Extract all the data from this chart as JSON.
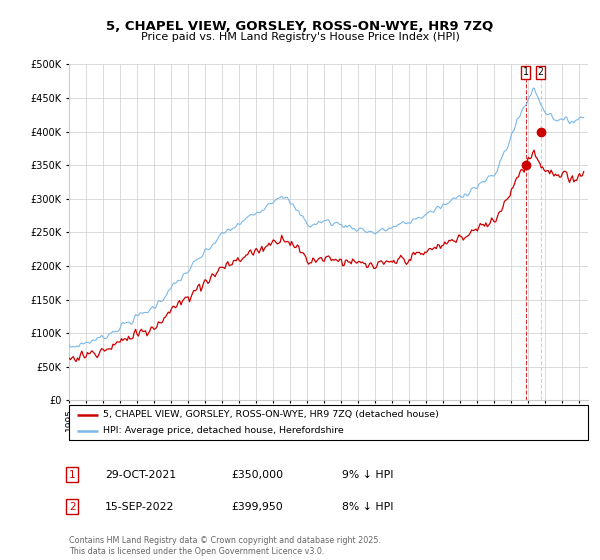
{
  "title": "5, CHAPEL VIEW, GORSLEY, ROSS-ON-WYE, HR9 7ZQ",
  "subtitle": "Price paid vs. HM Land Registry's House Price Index (HPI)",
  "legend1": "5, CHAPEL VIEW, GORSLEY, ROSS-ON-WYE, HR9 7ZQ (detached house)",
  "legend2": "HPI: Average price, detached house, Herefordshire",
  "sale1_date": "29-OCT-2021",
  "sale1_price": "£350,000",
  "sale1_note": "9% ↓ HPI",
  "sale2_date": "15-SEP-2022",
  "sale2_price": "£399,950",
  "sale2_note": "8% ↓ HPI",
  "sale1_x": 2021.83,
  "sale1_y": 350000,
  "sale2_x": 2022.71,
  "sale2_y": 399950,
  "hpi_color": "#7ab8e8",
  "price_color": "#cc0000",
  "marker_color": "#cc0000",
  "dashed1_color": "#cc0000",
  "dashed2_color": "#aaccee",
  "background_color": "#ffffff",
  "grid_color": "#cccccc",
  "ylim": [
    0,
    500000
  ],
  "xlim": [
    1995.0,
    2025.5
  ],
  "footer": "Contains HM Land Registry data © Crown copyright and database right 2025.\nThis data is licensed under the Open Government Licence v3.0."
}
